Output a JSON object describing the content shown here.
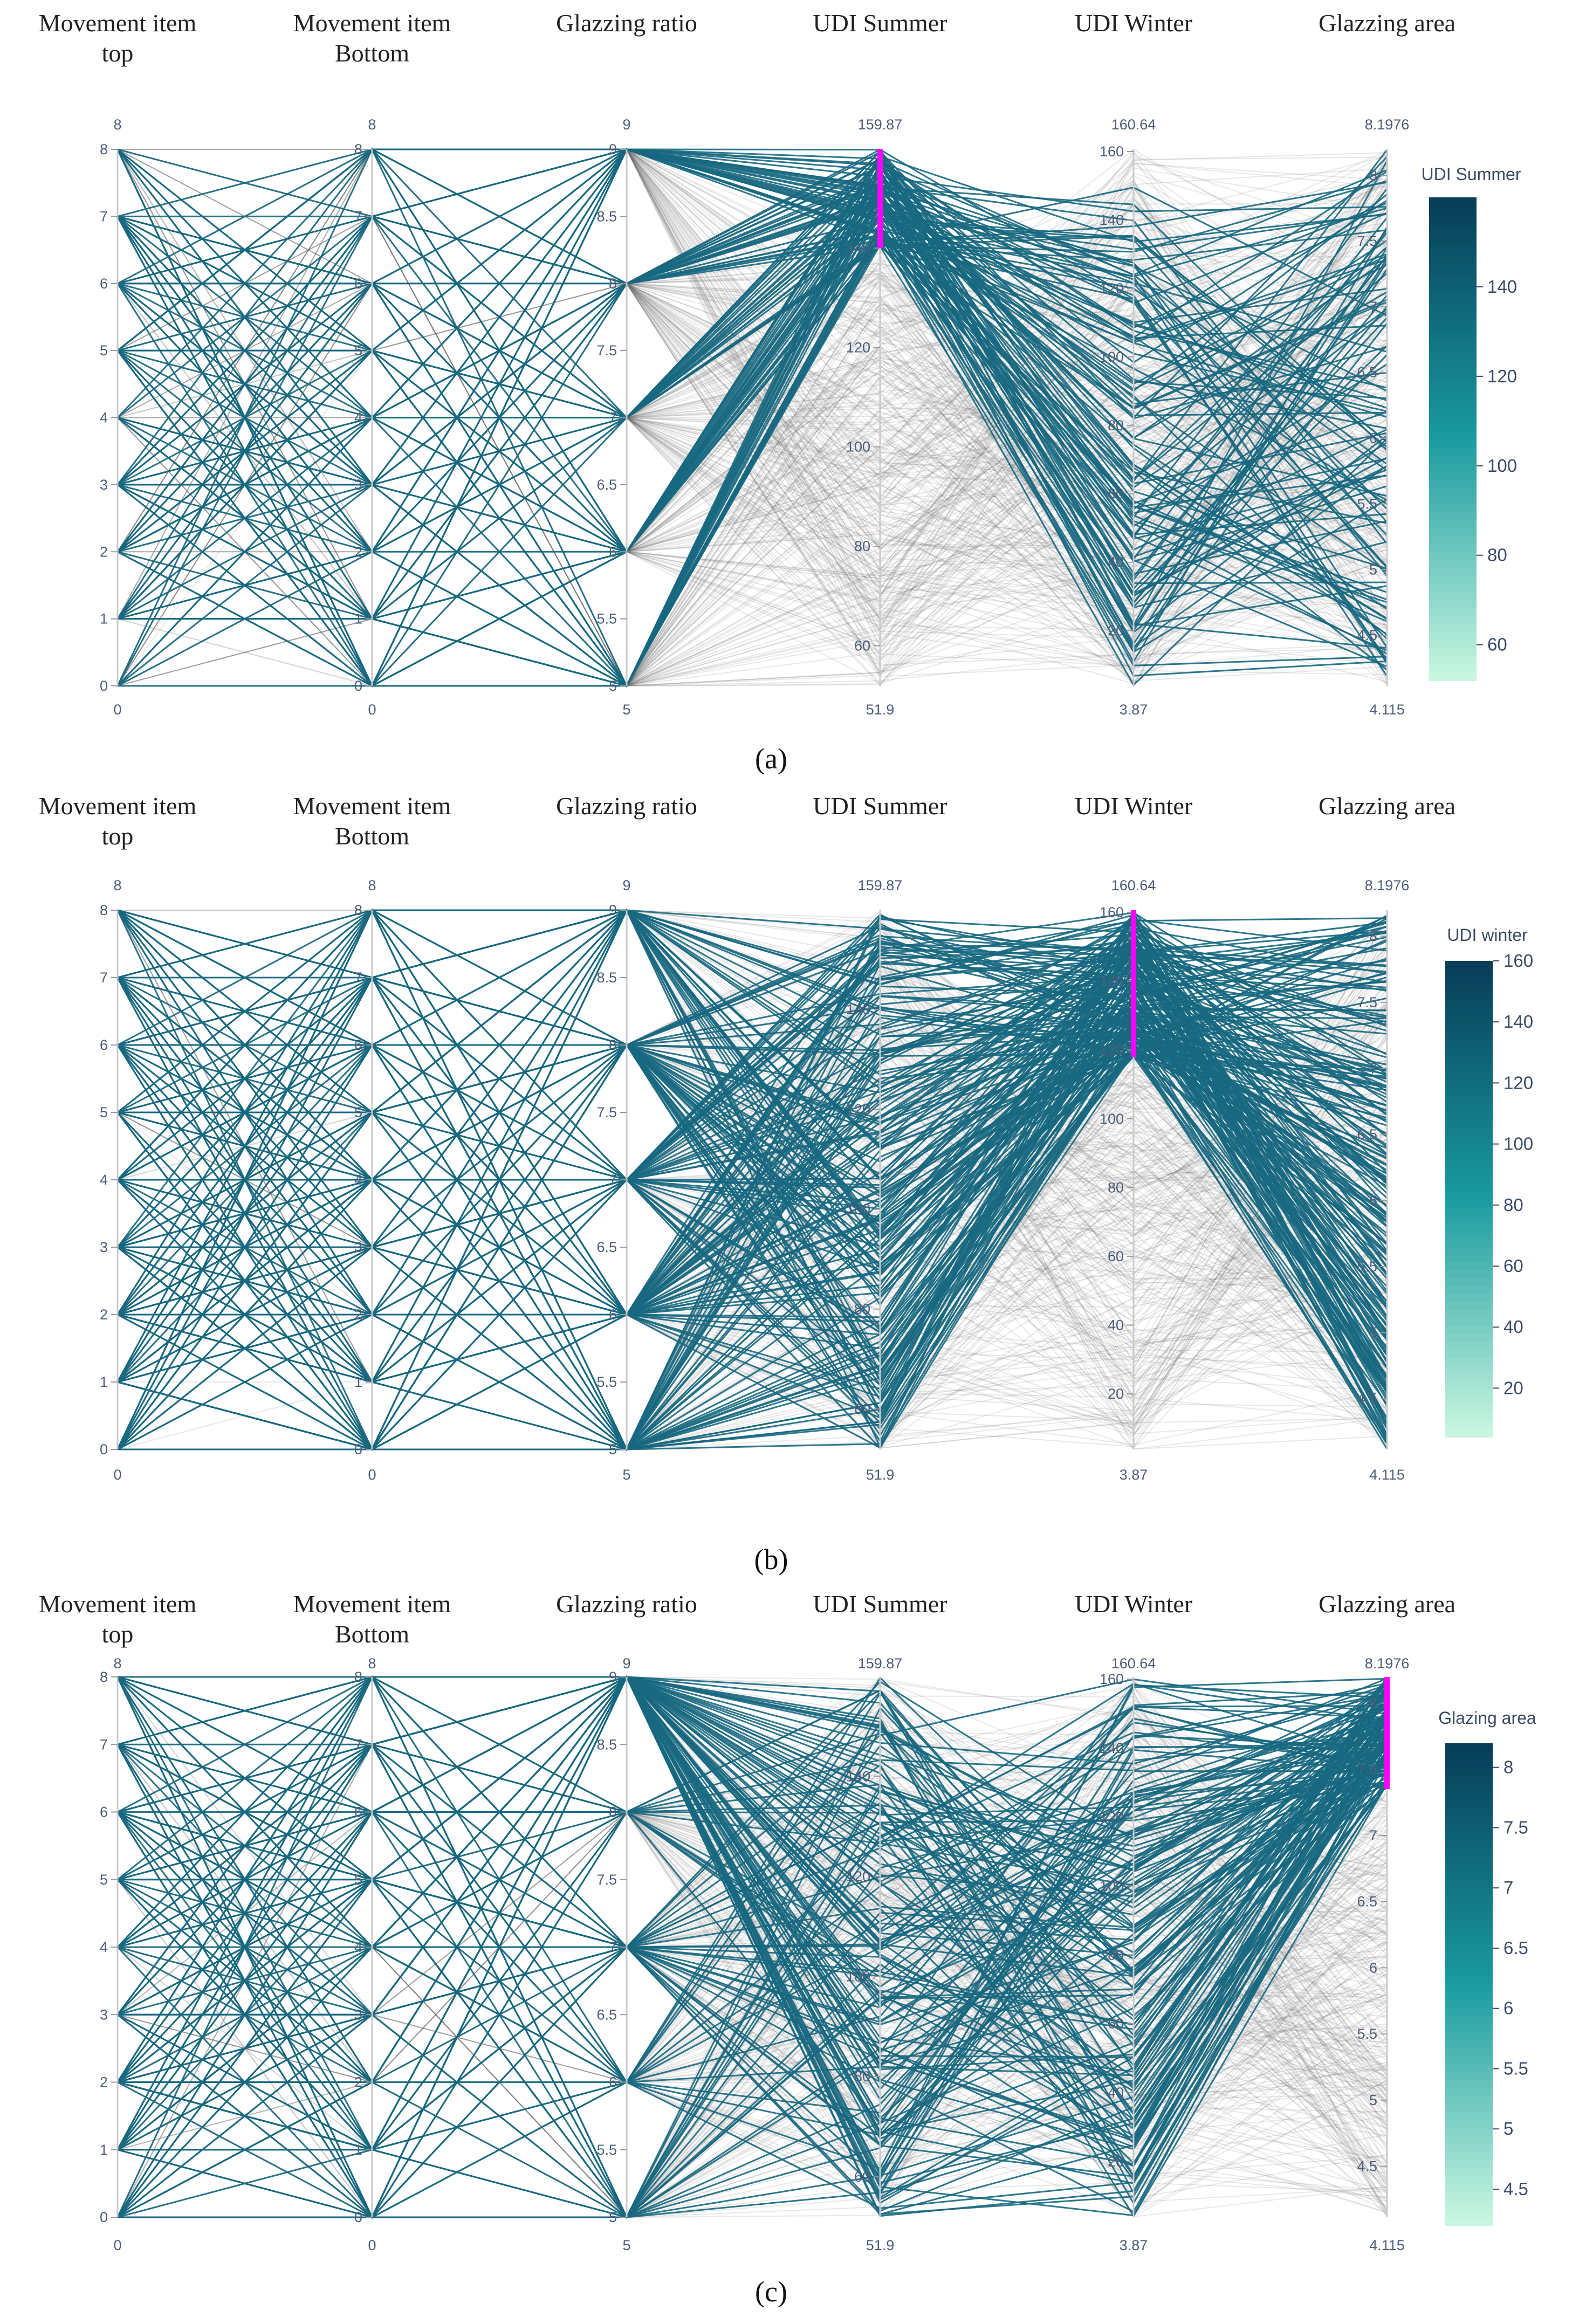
{
  "chart_data": [
    {
      "type": "parallel-coordinates",
      "caption": "(a)",
      "axes": [
        {
          "title": [
            "Movement item",
            "top"
          ],
          "range": [
            0,
            8
          ],
          "min_label": "0",
          "max_label": "8",
          "ticks": [
            0,
            1,
            2,
            3,
            4,
            5,
            6,
            7,
            8
          ],
          "tick_labels": [
            "0",
            "1",
            "2",
            "3",
            "4",
            "5",
            "6",
            "7",
            "8"
          ]
        },
        {
          "title": [
            "Movement item",
            "Bottom"
          ],
          "range": [
            0,
            8
          ],
          "min_label": "0",
          "max_label": "8",
          "ticks": [
            0,
            1,
            2,
            3,
            4,
            5,
            6,
            7,
            8
          ],
          "tick_labels": [
            "0",
            "1",
            "2",
            "3",
            "4",
            "5",
            "6",
            "7",
            "8"
          ]
        },
        {
          "title": [
            "Glazzing ratio"
          ],
          "range": [
            5,
            9
          ],
          "min_label": "5",
          "max_label": "9",
          "ticks": [
            5,
            5.5,
            6,
            6.5,
            7,
            7.5,
            8,
            8.5,
            9
          ],
          "tick_labels": [
            "5",
            "5.5",
            "6",
            "6.5",
            "7",
            "7.5",
            "8",
            "8.5",
            "9"
          ]
        },
        {
          "title": [
            "UDI Summer"
          ],
          "range": [
            51.9,
            159.87
          ],
          "min_label": "51.9",
          "max_label": "159.87",
          "ticks": [
            60,
            80,
            100,
            120,
            140
          ],
          "tick_labels": [
            "60",
            "80",
            "100",
            "120",
            "140"
          ]
        },
        {
          "title": [
            "UDI Winter"
          ],
          "range": [
            3.87,
            160.64
          ],
          "min_label": "3.87",
          "max_label": "160.64",
          "ticks": [
            20,
            40,
            60,
            80,
            100,
            120,
            140,
            160
          ],
          "tick_labels": [
            "20",
            "40",
            "60",
            "80",
            "100",
            "120",
            "140",
            "160"
          ]
        },
        {
          "title": [
            "Glazzing area"
          ],
          "range": [
            4.115,
            8.1976
          ],
          "min_label": "4.115",
          "max_label": "8.1976",
          "ticks": [
            4.5,
            5,
            5.5,
            6,
            6.5,
            7,
            7.5,
            8
          ],
          "tick_labels": [
            "4.5",
            "5",
            "5.5",
            "6",
            "6.5",
            "7",
            "7.5",
            "8"
          ]
        }
      ],
      "constraint": {
        "axis": 3,
        "range": [
          140,
          159.87
        ]
      },
      "colorbar": {
        "title": "UDI Summer",
        "range": [
          52,
          160
        ],
        "ticks": [
          60,
          80,
          100,
          120,
          140
        ],
        "tick_labels": [
          "60",
          "80",
          "100",
          "120",
          "140"
        ]
      },
      "colors": {
        "low": "#c8f6e0",
        "mid": "#1a9ba0",
        "high": "#073e58",
        "selected_line": "#17687f",
        "unselected_line": "#6e6e6e",
        "constraint": "#ff00ff"
      }
    },
    {
      "type": "parallel-coordinates",
      "caption": "(b)",
      "axes": [
        {
          "title": [
            "Movement item",
            "top"
          ],
          "range": [
            0,
            8
          ],
          "min_label": "0",
          "max_label": "8",
          "ticks": [
            0,
            1,
            2,
            3,
            4,
            5,
            6,
            7,
            8
          ],
          "tick_labels": [
            "0",
            "1",
            "2",
            "3",
            "4",
            "5",
            "6",
            "7",
            "8"
          ]
        },
        {
          "title": [
            "Movement item",
            "Bottom"
          ],
          "range": [
            0,
            8
          ],
          "min_label": "0",
          "max_label": "8",
          "ticks": [
            0,
            1,
            2,
            3,
            4,
            5,
            6,
            7,
            8
          ],
          "tick_labels": [
            "0",
            "1",
            "2",
            "3",
            "4",
            "5",
            "6",
            "7",
            "8"
          ]
        },
        {
          "title": [
            "Glazzing ratio"
          ],
          "range": [
            5,
            9
          ],
          "min_label": "5",
          "max_label": "9",
          "ticks": [
            5,
            5.5,
            6,
            6.5,
            7,
            7.5,
            8,
            8.5,
            9
          ],
          "tick_labels": [
            "5",
            "5.5",
            "6",
            "6.5",
            "7",
            "7.5",
            "8",
            "8.5",
            "9"
          ]
        },
        {
          "title": [
            "UDI Summer"
          ],
          "range": [
            51.9,
            159.87
          ],
          "min_label": "51.9",
          "max_label": "159.87",
          "ticks": [
            60,
            80,
            100,
            120,
            140
          ],
          "tick_labels": [
            "60",
            "80",
            "100",
            "120",
            "140"
          ]
        },
        {
          "title": [
            "UDI Winter"
          ],
          "range": [
            3.87,
            160.64
          ],
          "min_label": "3.87",
          "max_label": "160.64",
          "ticks": [
            20,
            40,
            60,
            80,
            100,
            120,
            140,
            160
          ],
          "tick_labels": [
            "20",
            "40",
            "60",
            "80",
            "100",
            "120",
            "140",
            "160"
          ]
        },
        {
          "title": [
            "Glazzing area"
          ],
          "range": [
            4.115,
            8.1976
          ],
          "min_label": "4.115",
          "max_label": "8.1976",
          "ticks": [
            4.5,
            5,
            5.5,
            6,
            6.5,
            7,
            7.5,
            8
          ],
          "tick_labels": [
            "4.5",
            "5",
            "5.5",
            "6",
            "6.5",
            "7",
            "7.5",
            "8"
          ]
        }
      ],
      "constraint": {
        "axis": 4,
        "range": [
          118,
          160.64
        ]
      },
      "colorbar": {
        "title": "UDI winter",
        "range": [
          4,
          160
        ],
        "ticks": [
          20,
          40,
          60,
          80,
          100,
          120,
          140,
          160
        ],
        "tick_labels": [
          "20",
          "40",
          "60",
          "80",
          "100",
          "120",
          "140",
          "160"
        ]
      },
      "colors": {
        "low": "#c8f6e0",
        "mid": "#1a9ba0",
        "high": "#073e58",
        "selected_line": "#17687f",
        "unselected_line": "#6e6e6e",
        "constraint": "#ff00ff"
      }
    },
    {
      "type": "parallel-coordinates",
      "caption": "(c)",
      "axes": [
        {
          "title": [
            "Movement item",
            "top"
          ],
          "range": [
            0,
            8
          ],
          "min_label": "0",
          "max_label": "8",
          "ticks": [
            0,
            1,
            2,
            3,
            4,
            5,
            6,
            7,
            8
          ],
          "tick_labels": [
            "0",
            "1",
            "2",
            "3",
            "4",
            "5",
            "6",
            "7",
            "8"
          ]
        },
        {
          "title": [
            "Movement item",
            "Bottom"
          ],
          "range": [
            0,
            8
          ],
          "min_label": "0",
          "max_label": "8",
          "ticks": [
            0,
            1,
            2,
            3,
            4,
            5,
            6,
            7,
            8
          ],
          "tick_labels": [
            "0",
            "1",
            "2",
            "3",
            "4",
            "5",
            "6",
            "7",
            "8"
          ]
        },
        {
          "title": [
            "Glazzing ratio"
          ],
          "range": [
            5,
            9
          ],
          "min_label": "5",
          "max_label": "9",
          "ticks": [
            5,
            5.5,
            6,
            6.5,
            7,
            7.5,
            8,
            8.5,
            9
          ],
          "tick_labels": [
            "5",
            "5.5",
            "6",
            "6.5",
            "7",
            "7.5",
            "8",
            "8.5",
            "9"
          ]
        },
        {
          "title": [
            "UDI Summer"
          ],
          "range": [
            51.9,
            159.87
          ],
          "min_label": "51.9",
          "max_label": "159.87",
          "ticks": [
            60,
            80,
            100,
            120,
            140
          ],
          "tick_labels": [
            "60",
            "80",
            "100",
            "120",
            "140"
          ]
        },
        {
          "title": [
            "UDI Winter"
          ],
          "range": [
            3.87,
            160.64
          ],
          "min_label": "3.87",
          "max_label": "160.64",
          "ticks": [
            20,
            40,
            60,
            80,
            100,
            120,
            140,
            160
          ],
          "tick_labels": [
            "20",
            "40",
            "60",
            "80",
            "100",
            "120",
            "140",
            "160"
          ]
        },
        {
          "title": [
            "Glazzing area"
          ],
          "range": [
            4.115,
            8.1976
          ],
          "min_label": "4.115",
          "max_label": "8.1976",
          "ticks": [
            4.5,
            5,
            5.5,
            6,
            6.5,
            7,
            7.5,
            8
          ],
          "tick_labels": [
            "4.5",
            "5",
            "5.5",
            "6",
            "6.5",
            "7",
            "7.5",
            "8"
          ]
        }
      ],
      "constraint": {
        "axis": 5,
        "range": [
          7.35,
          8.1976
        ]
      },
      "colorbar": {
        "title": "Glazing area",
        "range": [
          4.2,
          8.2
        ],
        "ticks": [
          4.5,
          5,
          5.5,
          6,
          6.5,
          7,
          7.5,
          8
        ],
        "tick_labels": [
          "4.5",
          "5",
          "5.5",
          "6",
          "6.5",
          "7",
          "7.5",
          "8"
        ]
      },
      "colors": {
        "low": "#c8f6e0",
        "mid": "#1a9ba0",
        "high": "#073e58",
        "selected_line": "#17687f",
        "unselected_line": "#6e6e6e",
        "constraint": "#ff00ff"
      }
    }
  ]
}
